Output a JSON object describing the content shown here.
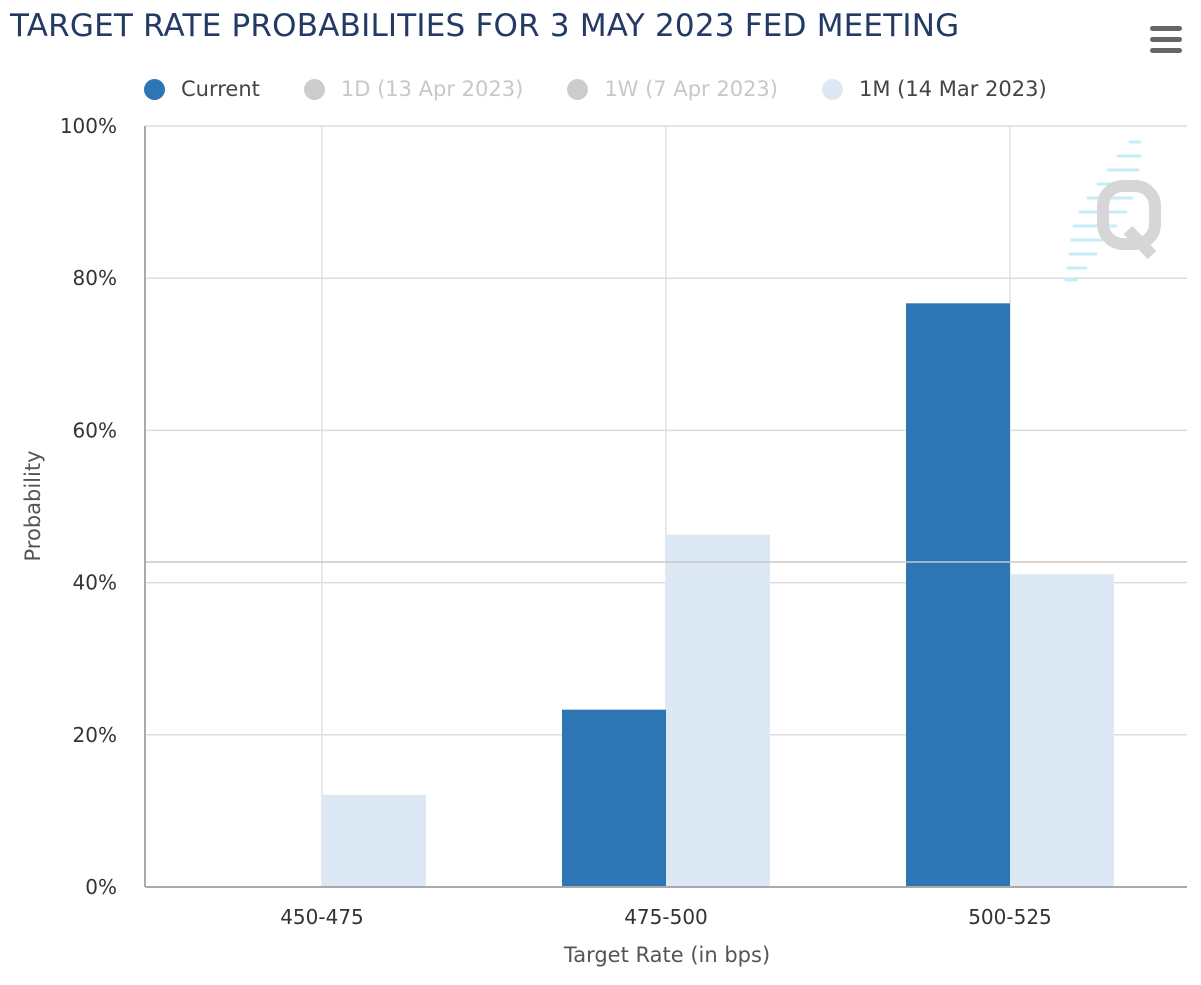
{
  "title": "TARGET RATE PROBABILITIES FOR 3 MAY 2023 FED MEETING",
  "menu_icon": "hamburger-menu-icon",
  "watermark_icon": "quikstrike-q-logo-icon",
  "legend": [
    {
      "label": "Current",
      "color": "#2e75b6",
      "text_color": "#444444",
      "active": true
    },
    {
      "label": "1D (13 Apr 2023)",
      "color": "#cccccc",
      "text_color": "#c8c8c8",
      "active": false
    },
    {
      "label": "1W (7 Apr 2023)",
      "color": "#cccccc",
      "text_color": "#c8c8c8",
      "active": false
    },
    {
      "label": "1M (14 Mar 2023)",
      "color": "#dce9f5",
      "text_color": "#444444",
      "active": true
    }
  ],
  "chart_data": {
    "type": "bar",
    "title": "TARGET RATE PROBABILITIES FOR 3 MAY 2023 FED MEETING",
    "xlabel": "Target Rate (in bps)",
    "ylabel": "Probability",
    "categories": [
      "450-475",
      "475-500",
      "500-525"
    ],
    "series": [
      {
        "name": "Current",
        "color": "#2e75b6",
        "values": [
          0,
          23.3,
          76.7
        ]
      },
      {
        "name": "1M (14 Mar 2023)",
        "color": "#dce9f5",
        "values": [
          12.1,
          46.3,
          41.1
        ]
      }
    ],
    "ylim": [
      0,
      100
    ],
    "yticks": [
      0,
      20,
      40,
      60,
      80,
      100
    ],
    "ytick_labels": [
      "0%",
      "20%",
      "40%",
      "60%",
      "80%",
      "100%"
    ],
    "reference_line": 42.7,
    "grid": true,
    "legend_position": "top"
  }
}
